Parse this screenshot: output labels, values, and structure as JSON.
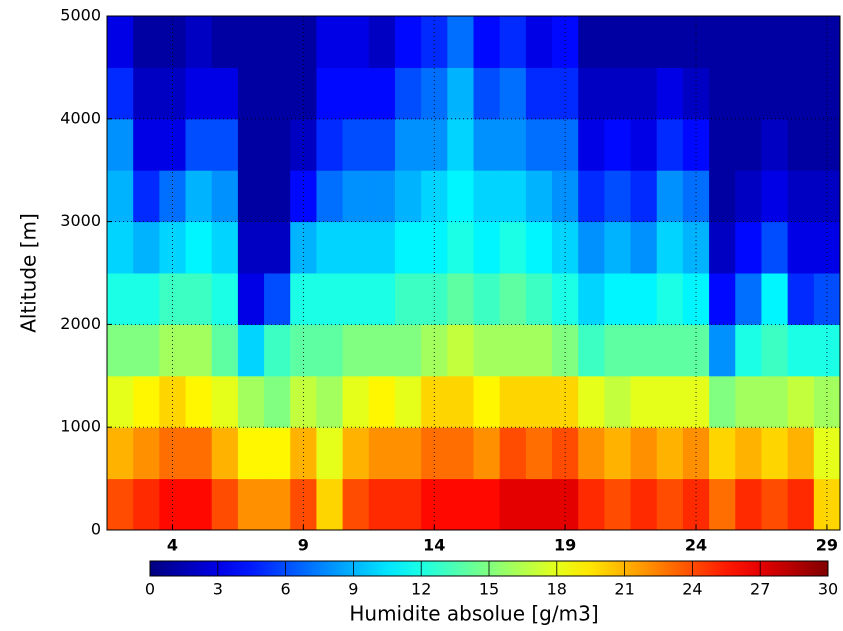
{
  "chart_data": {
    "type": "heatmap",
    "colormap": "jet",
    "x": [
      2,
      3,
      4,
      5,
      6,
      7,
      8,
      9,
      10,
      11,
      12,
      13,
      14,
      15,
      16,
      17,
      18,
      19,
      20,
      21,
      22,
      23,
      24,
      25,
      26,
      27,
      28,
      29
    ],
    "y": [
      250,
      750,
      1250,
      1750,
      2250,
      2750,
      3250,
      3750,
      4250,
      4750
    ],
    "values": [
      [
        24,
        21,
        18,
        15,
        12,
        10,
        9,
        8,
        5,
        3
      ],
      [
        25,
        22,
        19,
        15,
        12,
        9,
        5,
        3,
        2,
        1
      ],
      [
        26,
        23,
        20,
        16,
        13,
        10,
        7,
        3,
        2,
        1
      ],
      [
        26,
        23,
        19,
        16,
        13,
        11,
        9,
        6,
        3,
        2
      ],
      [
        24,
        21,
        18,
        14,
        12,
        10,
        8,
        6,
        3,
        1
      ],
      [
        22,
        19,
        16,
        10,
        3,
        2,
        1,
        1,
        1,
        1
      ],
      [
        22,
        19,
        15,
        13,
        6,
        2,
        1,
        1,
        1,
        1
      ],
      [
        24,
        21,
        17,
        14,
        12,
        9,
        4,
        2,
        1,
        1
      ],
      [
        20,
        18,
        16,
        14,
        12,
        10,
        7,
        5,
        4,
        3
      ],
      [
        24,
        21,
        18,
        15,
        12,
        10,
        8,
        6,
        4,
        3
      ],
      [
        25,
        22,
        19,
        15,
        12,
        10,
        8,
        6,
        4,
        2
      ],
      [
        25,
        22,
        18,
        15,
        13,
        11,
        9,
        8,
        6,
        4
      ],
      [
        26,
        23,
        20,
        16,
        13,
        11,
        10,
        8,
        7,
        5
      ],
      [
        26,
        23,
        20,
        17,
        14,
        12,
        11,
        10,
        9,
        7
      ],
      [
        26,
        22,
        19,
        16,
        13,
        11,
        10,
        8,
        6,
        4
      ],
      [
        27,
        24,
        20,
        16,
        14,
        12,
        10,
        8,
        7,
        5
      ],
      [
        27,
        23,
        20,
        16,
        13,
        11,
        9,
        7,
        5,
        3
      ],
      [
        27,
        24,
        20,
        15,
        12,
        10,
        8,
        7,
        5,
        4
      ],
      [
        25,
        22,
        18,
        13,
        10,
        8,
        5,
        3,
        2,
        1
      ],
      [
        24,
        21,
        17,
        14,
        11,
        9,
        6,
        4,
        2,
        1
      ],
      [
        25,
        22,
        18,
        14,
        11,
        8,
        5,
        3,
        2,
        1
      ],
      [
        24,
        21,
        18,
        14,
        12,
        10,
        8,
        5,
        3,
        1
      ],
      [
        25,
        22,
        18,
        14,
        11,
        9,
        7,
        4,
        2,
        1
      ],
      [
        23,
        20,
        15,
        8,
        4,
        2,
        1,
        1,
        1,
        1
      ],
      [
        25,
        21,
        16,
        12,
        7,
        4,
        2,
        1,
        1,
        1
      ],
      [
        24,
        20,
        16,
        13,
        11,
        6,
        3,
        2,
        1,
        1
      ],
      [
        25,
        21,
        17,
        12,
        5,
        3,
        2,
        1,
        1,
        1
      ],
      [
        20,
        18,
        16,
        12,
        6,
        3,
        2,
        1,
        1,
        1
      ]
    ],
    "xlim": [
      1.5,
      29.5
    ],
    "xticks": [
      4,
      9,
      14,
      19,
      24,
      29
    ],
    "ylim": [
      0,
      5000
    ],
    "yticks": [
      0,
      1000,
      2000,
      3000,
      4000,
      5000
    ],
    "y_label": "Altitude [m]",
    "grid": true,
    "colorbar": {
      "label": "Humidite absolue [g/m3]",
      "lim": [
        0,
        30
      ],
      "ticks": [
        0,
        3,
        6,
        9,
        12,
        15,
        18,
        21,
        24,
        27,
        30
      ]
    }
  }
}
